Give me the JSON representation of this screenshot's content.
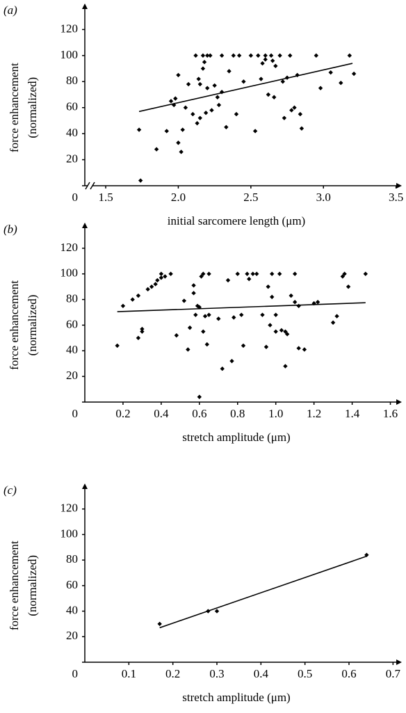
{
  "chart_data": [
    {
      "type": "scatter",
      "panel_label": "(a)",
      "y_label": [
        "force enhancement",
        "(normalized)"
      ],
      "x_label": "initial sarcomere length (μm)",
      "color": "#000000",
      "x_axis_break": true,
      "xlim": [
        1.356,
        3.54
      ],
      "xticks": [
        1.5,
        {
          "value": 2,
          "label": "2.0"
        },
        2.5,
        {
          "value": 3,
          "label": "3.0"
        },
        3.5
      ],
      "ylim": [
        0,
        140
      ],
      "yticks": [
        0,
        20,
        40,
        60,
        80,
        100,
        120
      ],
      "x": [
        1.73,
        1.74,
        1.85,
        1.92,
        1.95,
        1.97,
        1.98,
        2.0,
        2.0,
        2.02,
        2.03,
        2.05,
        2.07,
        2.1,
        2.12,
        2.13,
        2.14,
        2.15,
        2.15,
        2.17,
        2.17,
        2.18,
        2.19,
        2.2,
        2.2,
        2.22,
        2.23,
        2.25,
        2.27,
        2.28,
        2.3,
        2.3,
        2.33,
        2.35,
        2.38,
        2.4,
        2.42,
        2.45,
        2.5,
        2.53,
        2.55,
        2.57,
        2.58,
        2.6,
        2.6,
        2.62,
        2.64,
        2.65,
        2.66,
        2.67,
        2.7,
        2.72,
        2.73,
        2.75,
        2.77,
        2.78,
        2.8,
        2.82,
        2.84,
        2.85,
        2.95,
        2.98,
        3.05,
        3.12,
        3.18,
        3.21
      ],
      "values": [
        43,
        4,
        28,
        42,
        65,
        62,
        67,
        85,
        33,
        26,
        43,
        60,
        78,
        55,
        100,
        48,
        82,
        78,
        52,
        100,
        90,
        95,
        56,
        100,
        75,
        100,
        58,
        77,
        68,
        62,
        100,
        72,
        45,
        88,
        100,
        55,
        100,
        80,
        100,
        42,
        100,
        82,
        94,
        97,
        100,
        70,
        100,
        96,
        68,
        92,
        100,
        80,
        52,
        83,
        100,
        58,
        60,
        85,
        55,
        44,
        100,
        75,
        87,
        79,
        100,
        86
      ],
      "trend": {
        "x": [
          1.73,
          3.2
        ],
        "values": [
          57,
          94
        ]
      }
    },
    {
      "type": "scatter",
      "panel_label": "(b)",
      "y_label": [
        "force enhancement",
        "(normalized)"
      ],
      "x_label": "stretch amplitude (μm)",
      "color": "#000000",
      "x_axis_break": false,
      "xlim": [
        0,
        1.66
      ],
      "xticks": [
        0.2,
        0.4,
        0.6,
        0.8,
        {
          "value": 1,
          "label": "1.0"
        },
        1.2,
        1.4,
        1.6
      ],
      "ylim": [
        0,
        140
      ],
      "yticks": [
        0,
        20,
        40,
        60,
        80,
        100,
        120
      ],
      "x": [
        0.17,
        0.2,
        0.25,
        0.28,
        0.28,
        0.3,
        0.3,
        0.33,
        0.35,
        0.37,
        0.38,
        0.4,
        0.4,
        0.42,
        0.45,
        0.48,
        0.52,
        0.54,
        0.55,
        0.57,
        0.57,
        0.58,
        0.59,
        0.6,
        0.6,
        0.61,
        0.62,
        0.62,
        0.63,
        0.64,
        0.65,
        0.65,
        0.7,
        0.72,
        0.75,
        0.77,
        0.78,
        0.8,
        0.82,
        0.83,
        0.85,
        0.86,
        0.88,
        0.9,
        0.93,
        0.95,
        0.96,
        0.97,
        0.98,
        0.98,
        1.0,
        1.0,
        1.02,
        1.03,
        1.05,
        1.05,
        1.06,
        1.08,
        1.1,
        1.1,
        1.12,
        1.12,
        1.15,
        1.2,
        1.22,
        1.3,
        1.32,
        1.35,
        1.36,
        1.38,
        1.47
      ],
      "values": [
        44,
        75,
        80,
        83,
        50,
        57,
        55,
        88,
        90,
        92,
        95,
        100,
        97,
        98,
        100,
        52,
        79,
        41,
        58,
        85,
        91,
        68,
        75,
        74,
        4,
        98,
        55,
        100,
        67,
        45,
        100,
        68,
        65,
        26,
        95,
        32,
        66,
        100,
        68,
        44,
        100,
        96,
        100,
        100,
        68,
        43,
        90,
        60,
        100,
        82,
        55,
        68,
        100,
        56,
        55,
        28,
        53,
        83,
        78,
        100,
        75,
        42,
        41,
        77,
        78,
        62,
        67,
        98,
        100,
        90,
        100
      ],
      "trend": {
        "x": [
          0.17,
          1.47
        ],
        "values": [
          70.5,
          77.5
        ]
      }
    },
    {
      "type": "scatter",
      "panel_label": "(c)",
      "y_label": [
        "force enhancement",
        "(normalized)"
      ],
      "x_label": "stretch amplitude (μm)",
      "color": "#000000",
      "x_axis_break": false,
      "xlim": [
        0,
        0.72
      ],
      "xticks": [
        0.1,
        0.2,
        0.3,
        0.4,
        0.5,
        0.6,
        0.7
      ],
      "ylim": [
        0,
        140
      ],
      "yticks": [
        0,
        20,
        40,
        60,
        80,
        100,
        120
      ],
      "x": [
        0.17,
        0.28,
        0.3,
        0.64
      ],
      "values": [
        30,
        40,
        40,
        84
      ],
      "trend": {
        "x": [
          0.17,
          0.64
        ],
        "values": [
          27,
          83
        ]
      }
    }
  ]
}
